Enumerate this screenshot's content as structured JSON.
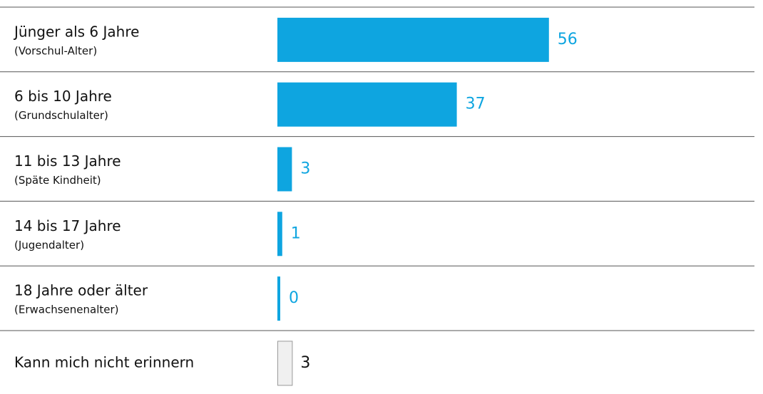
{
  "chart_data": {
    "type": "bar",
    "categories": [
      "Jünger als 6 Jahre",
      "6 bis 10 Jahre",
      "11 bis 13 Jahre",
      "14 bis 17 Jahre",
      "18 Jahre oder älter",
      "Kann mich nicht erinnern"
    ],
    "category_notes": [
      "(Vorschul-Alter)",
      "(Grundschulalter)",
      "(Späte Kindheit)",
      "(Jugendalter)",
      "(Erwachsenenalter)",
      null
    ],
    "values": [
      56,
      37,
      3,
      1,
      0,
      3
    ],
    "colors": [
      "#0ea5e0",
      "#0ea5e0",
      "#0ea5e0",
      "#0ea5e0",
      "#0ea5e0",
      "#f0f0f0"
    ],
    "label_colors": [
      "#0ea5e0",
      "#0ea5e0",
      "#0ea5e0",
      "#0ea5e0",
      "#0ea5e0",
      "#111111"
    ],
    "xlim": [
      0,
      100
    ]
  }
}
